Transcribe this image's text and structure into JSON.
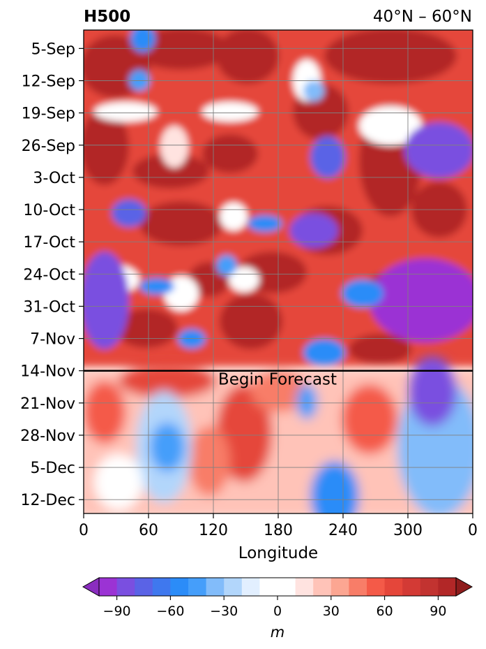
{
  "chart_data": {
    "type": "heatmap",
    "title_left": "H500",
    "title_right": "40°N – 60°N",
    "xlabel": "Longitude",
    "x_tick_labels": [
      "0",
      "60",
      "120",
      "180",
      "240",
      "300",
      "0"
    ],
    "xlim": [
      0,
      360
    ],
    "y_tick_labels": [
      "5-Sep",
      "12-Sep",
      "19-Sep",
      "26-Sep",
      "3-Oct",
      "10-Oct",
      "17-Oct",
      "24-Oct",
      "31-Oct",
      "7-Nov",
      "14-Nov",
      "21-Nov",
      "28-Nov",
      "5-Dec",
      "12-Dec"
    ],
    "ylim": [
      "1-Sep",
      "15-Dec"
    ],
    "y_inverted": true,
    "grid": true,
    "annotation": {
      "text": "Begin Forecast",
      "date": "14-Nov"
    },
    "colorbar": {
      "label": "m",
      "orientation": "horizontal",
      "extend": "both",
      "range": [
        -100,
        100
      ],
      "step": 10,
      "ticks": [
        -90,
        -60,
        -30,
        0,
        30,
        60,
        90
      ],
      "tick_labels": [
        "−90",
        "−60",
        "−30",
        "0",
        "30",
        "60",
        "90"
      ],
      "colors": [
        "#9b33d4",
        "#7a4fe0",
        "#5a63e6",
        "#3f78ee",
        "#2b8cf8",
        "#459efa",
        "#82bcfa",
        "#b2d6fb",
        "#e2efff",
        "#ffffff",
        "#ffffff",
        "#ffe3e0",
        "#ffc3b8",
        "#fca692",
        "#f87d68",
        "#f45a48",
        "#e5463a",
        "#d33a35",
        "#c23330",
        "#b22727"
      ],
      "under_color": "#8a2dbf",
      "over_color": "#8e1c1c"
    },
    "field_description_note": ""
  }
}
